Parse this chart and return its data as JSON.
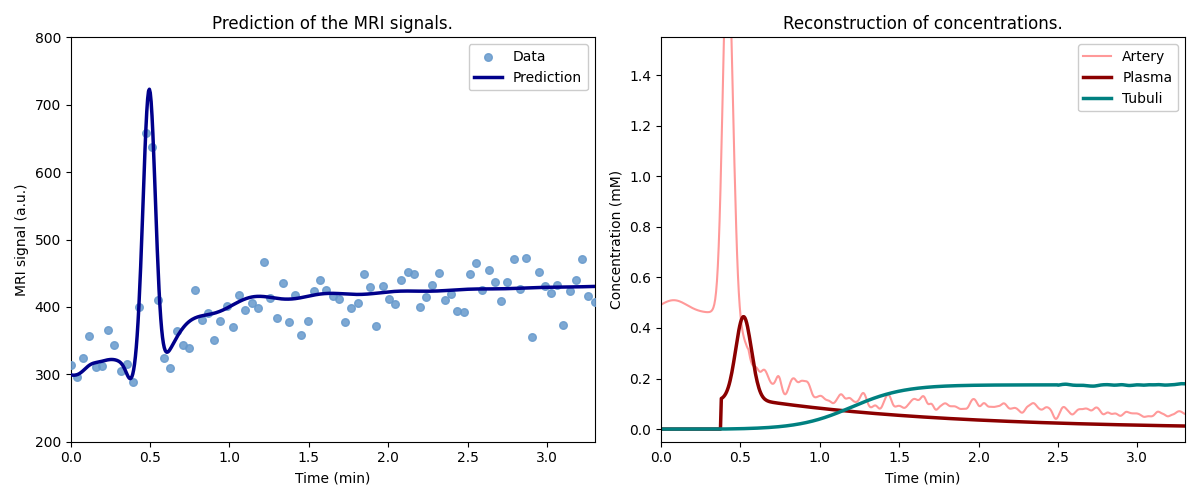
{
  "title_left": "Prediction of the MRI signals.",
  "title_right": "Reconstruction of concentrations.",
  "xlabel": "Time (min)",
  "ylabel_left": "MRI signal (a.u.)",
  "ylabel_right": "Concentration (mM)",
  "xlim": [
    0.0,
    3.3
  ],
  "ylim_left": [
    200,
    800
  ],
  "ylim_right": [
    -0.05,
    1.55
  ],
  "scatter_color": "#6699cc",
  "prediction_color": "#00008B",
  "artery_color": "#FF9999",
  "plasma_color": "#8B0000",
  "tubuli_color": "#008080",
  "scatter_size": 30,
  "prediction_lw": 2.5,
  "artery_lw": 1.5,
  "plasma_lw": 2.5,
  "tubuli_lw": 2.5,
  "figsize": [
    12,
    5
  ],
  "dpi": 100
}
